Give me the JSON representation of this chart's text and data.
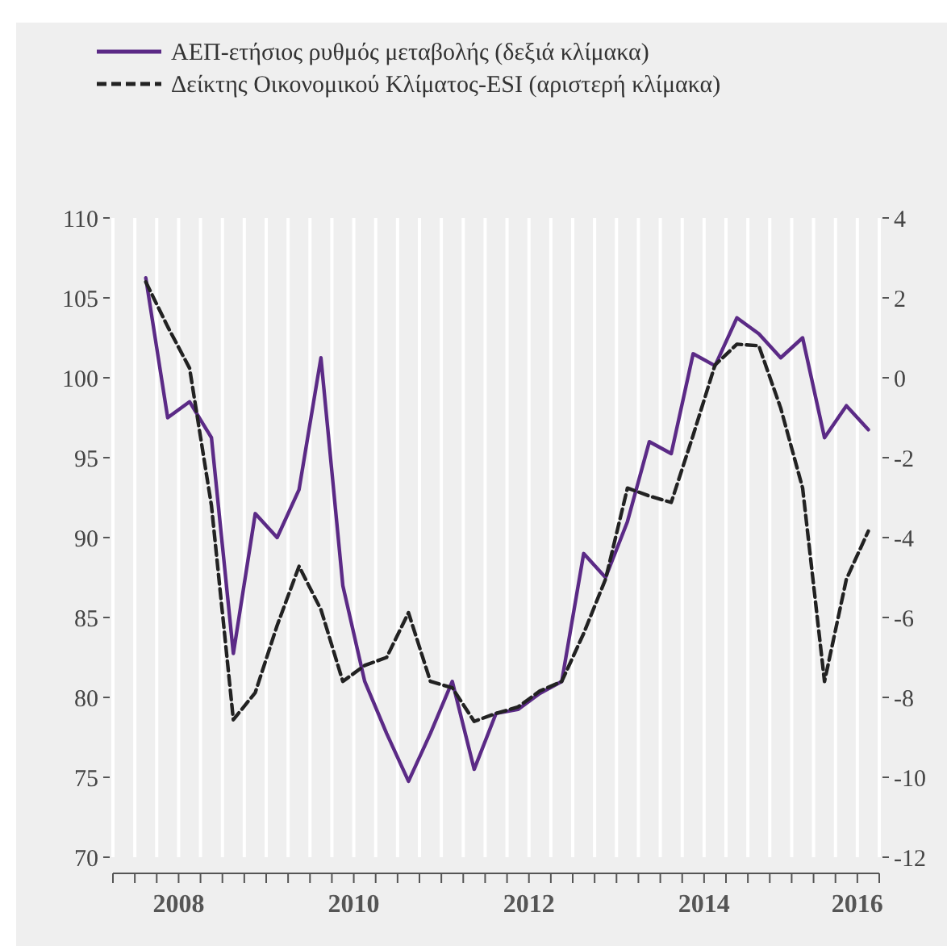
{
  "chart_data": {
    "type": "line",
    "x": [
      2008.125,
      2008.375,
      2008.625,
      2008.875,
      2009.125,
      2009.375,
      2009.625,
      2009.875,
      2010.125,
      2010.375,
      2010.625,
      2010.875,
      2011.125,
      2011.375,
      2011.625,
      2011.875,
      2012.125,
      2012.375,
      2012.625,
      2012.875,
      2013.125,
      2013.375,
      2013.625,
      2013.875,
      2014.125,
      2014.375,
      2014.625,
      2014.875,
      2015.125,
      2015.375,
      2015.625,
      2015.875,
      2016.125,
      2016.375
    ],
    "series": [
      {
        "name": "ΑΕΠ-ετήσιος ρυθμός μεταβολής (δεξιά κλίμακα)",
        "color": "#5b2a86",
        "axis": "y2",
        "line_style": "solid",
        "values": [
          2.5,
          -1.0,
          -0.6,
          -1.5,
          -6.9,
          -3.4,
          -4.0,
          -2.8,
          0.5,
          -5.2,
          -7.6,
          -8.9,
          -10.1,
          -8.9,
          -7.6,
          -9.8,
          -8.4,
          -8.3,
          -7.9,
          -7.6,
          -4.4,
          -5.0,
          -3.6,
          -1.6,
          -1.9,
          0.6,
          0.3,
          1.5,
          1.1,
          0.5,
          1.0,
          -1.5,
          -0.7,
          -1.3
        ]
      },
      {
        "name": "Δείκτης Οικονομικού Κλίματος-ESI (αριστερή κλίμακα)",
        "color": "#222222",
        "axis": "y",
        "line_style": "dashed",
        "values": [
          106.0,
          103.2,
          100.6,
          92.0,
          78.6,
          80.3,
          84.5,
          88.2,
          85.5,
          81.0,
          82.0,
          82.5,
          85.3,
          81.0,
          80.6,
          78.5,
          79.0,
          79.4,
          80.4,
          81.0,
          84.0,
          87.4,
          93.1,
          92.6,
          92.2,
          96.4,
          100.8,
          102.1,
          102.0,
          98.1,
          93.1,
          81.0,
          87.4,
          90.4
        ]
      }
    ],
    "xlim": [
      2007.75,
      2016.5
    ],
    "xticks": [
      {
        "value": 2007.75,
        "label": null
      },
      {
        "value": 2008,
        "label": null
      },
      {
        "value": 2008.25,
        "label": null
      },
      {
        "value": 2008.5,
        "label": "2008"
      },
      {
        "value": 2008.75,
        "label": null
      },
      {
        "value": 2009,
        "label": null
      },
      {
        "value": 2009.25,
        "label": null
      },
      {
        "value": 2009.5,
        "label": null
      },
      {
        "value": 2009.75,
        "label": null
      },
      {
        "value": 2010,
        "label": null
      },
      {
        "value": 2010.25,
        "label": null
      },
      {
        "value": 2010.5,
        "label": "2010"
      },
      {
        "value": 2010.75,
        "label": null
      },
      {
        "value": 2011,
        "label": null
      },
      {
        "value": 2011.25,
        "label": null
      },
      {
        "value": 2011.5,
        "label": null
      },
      {
        "value": 2011.75,
        "label": null
      },
      {
        "value": 2012,
        "label": null
      },
      {
        "value": 2012.25,
        "label": null
      },
      {
        "value": 2012.5,
        "label": "2012"
      },
      {
        "value": 2012.75,
        "label": null
      },
      {
        "value": 2013,
        "label": null
      },
      {
        "value": 2013.25,
        "label": null
      },
      {
        "value": 2013.5,
        "label": null
      },
      {
        "value": 2013.75,
        "label": null
      },
      {
        "value": 2014,
        "label": null
      },
      {
        "value": 2014.25,
        "label": null
      },
      {
        "value": 2014.5,
        "label": "2014"
      },
      {
        "value": 2014.75,
        "label": null
      },
      {
        "value": 2015,
        "label": null
      },
      {
        "value": 2015.25,
        "label": null
      },
      {
        "value": 2015.5,
        "label": null
      },
      {
        "value": 2015.75,
        "label": null
      },
      {
        "value": 2016,
        "label": null
      },
      {
        "value": 2016.25,
        "label": "2016"
      },
      {
        "value": 2016.5,
        "label": null
      }
    ],
    "ylim": [
      70,
      110
    ],
    "yticks": [
      70,
      75,
      80,
      85,
      90,
      95,
      100,
      105,
      110
    ],
    "y2lim": [
      -12,
      4
    ],
    "y2ticks": [
      -12,
      -10,
      -8,
      -6,
      -4,
      -2,
      0,
      2,
      4
    ],
    "grid": "x",
    "legend": "top"
  }
}
